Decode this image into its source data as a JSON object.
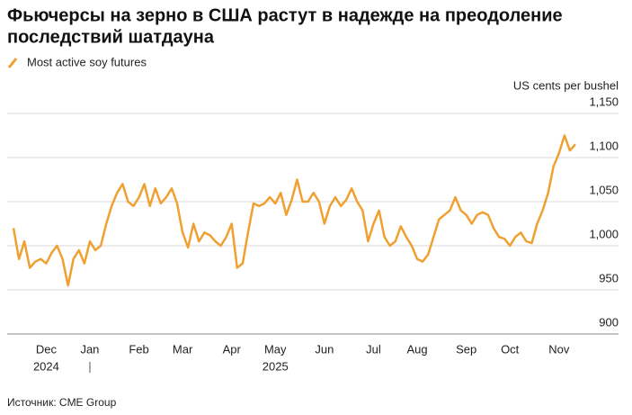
{
  "chart_data": {
    "type": "line",
    "title": "Фьючерсы на зерно в США растут в надежде на преодоление последствий шатдауна",
    "title_lines": [
      "Фьючерсы на зерно в США растут в надежде на преодоление",
      "последствий шатдауна"
    ],
    "y_axis_label": "US cents per bushel",
    "source": "Источник: CME Group",
    "year_labels": [
      "2024",
      "2025"
    ],
    "categories": [
      null,
      null,
      null,
      null,
      null,
      null,
      "Dec",
      null,
      null,
      null,
      null,
      null,
      null,
      null,
      "Jan",
      null,
      null,
      null,
      null,
      null,
      null,
      null,
      null,
      "Feb",
      null,
      null,
      null,
      null,
      null,
      null,
      null,
      "Mar",
      null,
      null,
      null,
      null,
      null,
      null,
      null,
      null,
      "Apr",
      null,
      null,
      null,
      null,
      null,
      null,
      null,
      "May",
      null,
      null,
      null,
      null,
      null,
      null,
      null,
      null,
      "Jun",
      null,
      null,
      null,
      null,
      null,
      null,
      null,
      null,
      "Jul",
      null,
      null,
      null,
      null,
      null,
      null,
      null,
      "Aug",
      null,
      null,
      null,
      null,
      null,
      null,
      null,
      null,
      "Sep",
      null,
      null,
      null,
      null,
      null,
      null,
      null,
      "Oct",
      null,
      null,
      null,
      null,
      null,
      null,
      null,
      null,
      "Nov",
      null,
      null,
      null
    ],
    "series": [
      {
        "name": "Most active soy futures",
        "color": "#f0a030",
        "values": [
          1020,
          985,
          1005,
          975,
          982,
          985,
          980,
          992,
          1000,
          985,
          955,
          985,
          995,
          980,
          1005,
          995,
          1000,
          1025,
          1045,
          1060,
          1070,
          1050,
          1045,
          1055,
          1070,
          1045,
          1065,
          1048,
          1055,
          1065,
          1048,
          1015,
          998,
          1025,
          1005,
          1015,
          1012,
          1005,
          1000,
          1010,
          1025,
          975,
          980,
          1015,
          1048,
          1045,
          1048,
          1055,
          1048,
          1060,
          1035,
          1052,
          1075,
          1050,
          1050,
          1060,
          1050,
          1025,
          1045,
          1055,
          1045,
          1052,
          1065,
          1050,
          1040,
          1005,
          1025,
          1040,
          1010,
          1000,
          1005,
          1022,
          1010,
          1000,
          985,
          982,
          990,
          1010,
          1030,
          1035,
          1040,
          1055,
          1040,
          1035,
          1025,
          1035,
          1038,
          1035,
          1020,
          1010,
          1008,
          1000,
          1010,
          1015,
          1005,
          1003,
          1025,
          1040,
          1060,
          1090,
          1105,
          1125,
          1108,
          1115
        ]
      }
    ],
    "ylim": [
      900,
      1150
    ],
    "yticks": [
      900,
      950,
      {
        "value": 1000,
        "label": "1,000"
      },
      {
        "value": 1050,
        "label": "1,050"
      },
      {
        "value": 1100,
        "label": "1,100"
      },
      {
        "value": 1150,
        "label": "1,150"
      }
    ],
    "grid": true
  }
}
